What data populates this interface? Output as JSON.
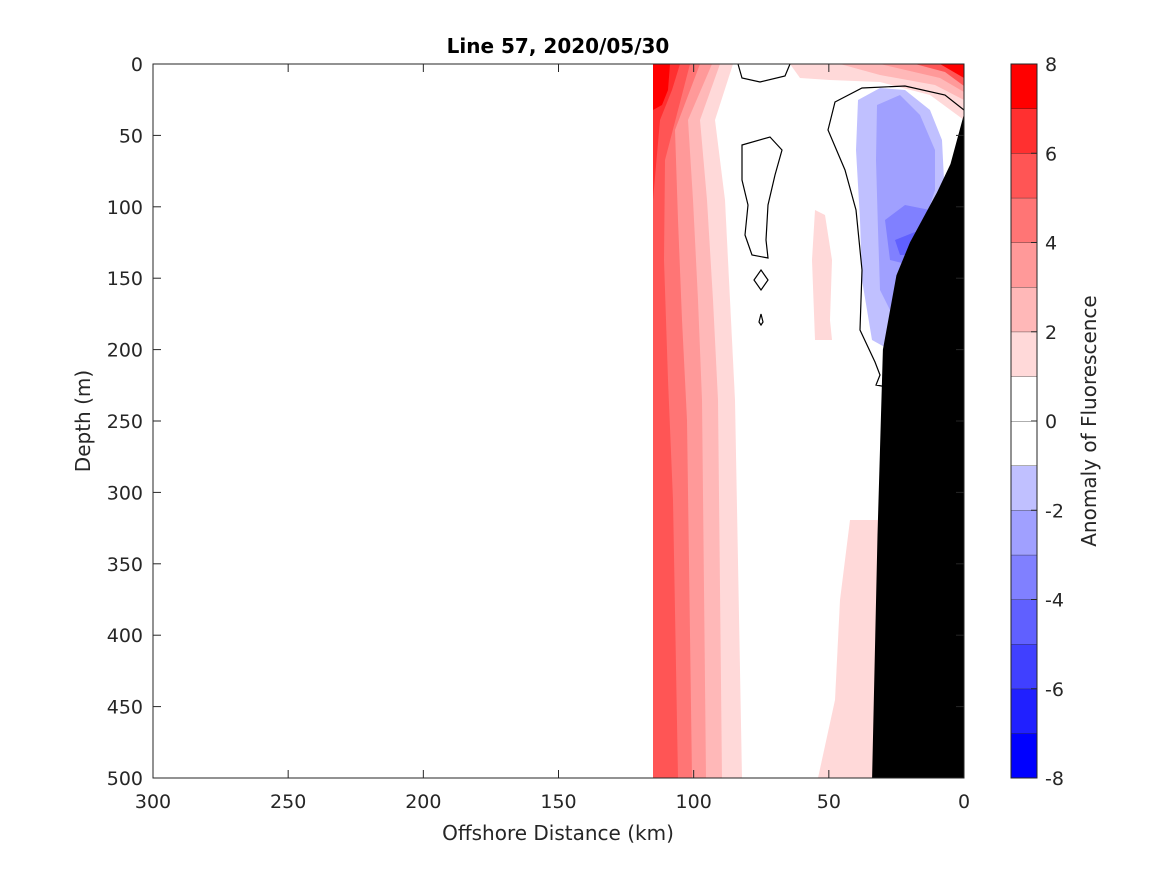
{
  "chart_data": {
    "type": "heatmap",
    "title": "Line 57, 2020/05/30",
    "xlabel": "Offshore Distance (km)",
    "ylabel": "Depth (m)",
    "xlim": [
      300,
      0
    ],
    "ylim": [
      500,
      0
    ],
    "x_reversed": true,
    "y_reversed": true,
    "x_ticks": [
      "300",
      "250",
      "200",
      "150",
      "100",
      "50",
      "0"
    ],
    "y_ticks": [
      "0",
      "50",
      "100",
      "150",
      "200",
      "250",
      "300",
      "350",
      "400",
      "450",
      "500"
    ],
    "data_extent_km": [
      115,
      0
    ],
    "colorbar": {
      "label": "Anomaly of Fluorescence",
      "range": [
        -8,
        8
      ],
      "tick_labels": [
        "8",
        "6",
        "4",
        "2",
        "0",
        "-2",
        "-4",
        "-6",
        "-8"
      ],
      "levels": [
        {
          "from": -8,
          "to": -7,
          "color": "#0000ff"
        },
        {
          "from": -7,
          "to": -6,
          "color": "#2020ff"
        },
        {
          "from": -6,
          "to": -5,
          "color": "#4040ff"
        },
        {
          "from": -5,
          "to": -4,
          "color": "#6060ff"
        },
        {
          "from": -4,
          "to": -3,
          "color": "#8080ff"
        },
        {
          "from": -3,
          "to": -2,
          "color": "#a0a0ff"
        },
        {
          "from": -2,
          "to": -1,
          "color": "#c0c0ff"
        },
        {
          "from": -1,
          "to": 0,
          "color": "#ffffff"
        },
        {
          "from": 0,
          "to": 1,
          "color": "#ffffff"
        },
        {
          "from": 1,
          "to": 2,
          "color": "#ffd9d9"
        },
        {
          "from": 2,
          "to": 3,
          "color": "#ffb8b8"
        },
        {
          "from": 3,
          "to": 4,
          "color": "#ff9999"
        },
        {
          "from": 4,
          "to": 5,
          "color": "#ff7575"
        },
        {
          "from": 5,
          "to": 6,
          "color": "#ff5555"
        },
        {
          "from": 6,
          "to": 7,
          "color": "#ff3030"
        },
        {
          "from": 7,
          "to": 8,
          "color": "#ff0000"
        }
      ]
    },
    "bathymetry": {
      "color": "#000000",
      "bottom_depth_m": [
        {
          "km": 0,
          "depth": 35
        },
        {
          "km": 5,
          "depth": 70
        },
        {
          "km": 10,
          "depth": 90
        },
        {
          "km": 20,
          "depth": 125
        },
        {
          "km": 25,
          "depth": 148
        },
        {
          "km": 30,
          "depth": 200
        },
        {
          "km": 32,
          "depth": 330
        },
        {
          "km": 34,
          "depth": 500
        }
      ]
    },
    "anomaly_regions": [
      {
        "name": "red-left-band",
        "value_range": [
          2,
          8
        ],
        "outline_km_depth": [
          [
            115,
            0
          ],
          [
            82,
            0
          ],
          [
            82,
            500
          ],
          [
            115,
            500
          ]
        ]
      },
      {
        "name": "red-upper-right",
        "value_range": [
          1,
          8
        ],
        "outline_km_depth": [
          [
            60,
            0
          ],
          [
            0,
            0
          ],
          [
            0,
            35
          ],
          [
            10,
            20
          ],
          [
            35,
            15
          ],
          [
            55,
            10
          ]
        ]
      },
      {
        "name": "blue-nearshore",
        "value_range": [
          -5,
          -1
        ],
        "outline_km_depth": [
          [
            38,
            20
          ],
          [
            25,
            18
          ],
          [
            12,
            30
          ],
          [
            10,
            90
          ],
          [
            18,
            120
          ],
          [
            27,
            170
          ],
          [
            30,
            195
          ],
          [
            35,
            190
          ],
          [
            35,
            140
          ],
          [
            37,
            80
          ]
        ]
      },
      {
        "name": "pink-deep-strip",
        "value_range": [
          1,
          2
        ],
        "outline_km_depth": [
          [
            42,
            320
          ],
          [
            34,
            320
          ],
          [
            34,
            500
          ],
          [
            52,
            500
          ],
          [
            45,
            400
          ]
        ]
      }
    ]
  }
}
